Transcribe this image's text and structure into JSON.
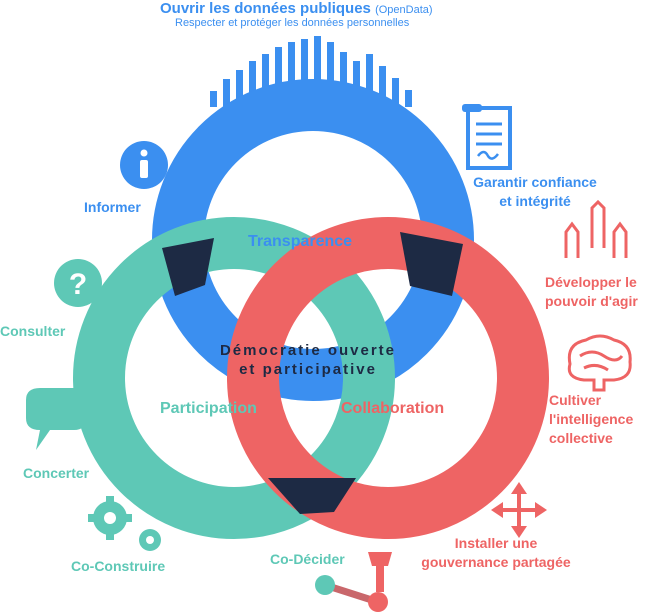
{
  "colors": {
    "blue": "#3b8ff0",
    "teal": "#5ec8b6",
    "red": "#ee6464",
    "navy": "#1d2a44"
  },
  "top": {
    "title": "Ouvrir les données publiques",
    "title_suffix": "(OpenData)",
    "subtitle": "Respecter et protéger les données personnelles"
  },
  "rings": {
    "transparence": "Transparence",
    "participation": "Participation",
    "collaboration": "Collaboration"
  },
  "center": {
    "line1": "Démocratie ouverte",
    "line2": "et participative"
  },
  "left_actions": {
    "informer": "Informer",
    "consulter": "Consulter",
    "concerter": "Concerter",
    "co_construire": "Co-Construire",
    "co_decider": "Co-Décider"
  },
  "right_actions": {
    "confiance_line1": "Garantir confiance",
    "confiance_line2": "et intégrité",
    "pouvoir_line1": "Développer le",
    "pouvoir_line2": "pouvoir d'agir",
    "intelligence_line1": "Cultiver",
    "intelligence_line2": "l'intelligence",
    "intelligence_line3": "collective",
    "gouvernance_line1": "Installer une",
    "gouvernance_line2": "gouvernance partagée"
  },
  "icons": [
    "bar-chart-icon",
    "info-icon",
    "question-icon",
    "speech-bubble-icon",
    "gears-icon",
    "joystick-icon",
    "document-icon",
    "raised-hands-icon",
    "brain-icon",
    "move-arrows-icon"
  ]
}
